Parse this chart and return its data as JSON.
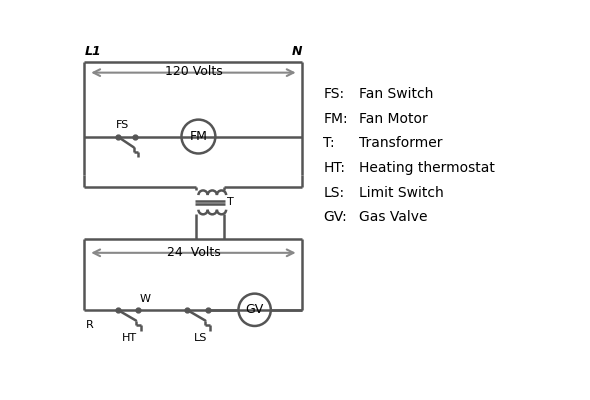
{
  "background_color": "#ffffff",
  "line_color": "#555555",
  "text_color": "#000000",
  "legend_items": [
    [
      "FS:",
      "Fan Switch"
    ],
    [
      "FM:",
      "Fan Motor"
    ],
    [
      "T:",
      "Transformer"
    ],
    [
      "HT:",
      "Heating thermostat"
    ],
    [
      "LS:",
      "Limit Switch"
    ],
    [
      "GV:",
      "Gas Valve"
    ]
  ],
  "L1_label": "L1",
  "N_label": "N",
  "volts120_label": "120 Volts",
  "volts24_label": "24  Volts",
  "T_label": "T",
  "R_label": "R",
  "W_label": "W",
  "HT_label": "HT",
  "LS_label": "LS",
  "FS_label": "FS",
  "FM_label": "FM",
  "GV_label": "GV",
  "arrow_color": "#888888"
}
